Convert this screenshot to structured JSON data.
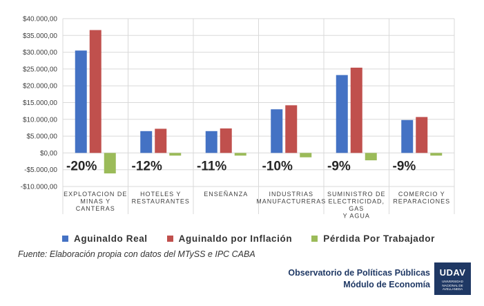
{
  "chart_data": {
    "type": "bar",
    "title": "",
    "xlabel": "",
    "ylabel": "",
    "ylim": [
      -10000,
      40000
    ],
    "yticks": [
      -10000,
      -5000,
      0,
      5000,
      10000,
      15000,
      20000,
      25000,
      30000,
      35000,
      40000
    ],
    "ytick_labels": [
      "-$10.000,00",
      "-$5.000,00",
      "$0,00",
      "$5.000,00",
      "$10.000,00",
      "$15.000,00",
      "$20.000,00",
      "$25.000,00",
      "$30.000,00",
      "$35.000,00",
      "$40.000,00"
    ],
    "categories": [
      [
        "EXPLOTACION DE",
        "MINAS Y",
        "CANTERAS"
      ],
      [
        "HOTELES Y",
        "RESTAURANTES"
      ],
      [
        "ENSEÑANZA"
      ],
      [
        "INDUSTRIAS",
        "MANUFACTURERAS"
      ],
      [
        "SUMINISTRO DE",
        "ELECTRICIDAD,",
        "GAS",
        "Y AGUA"
      ],
      [
        "COMERCIO Y",
        "REPARACIONES"
      ]
    ],
    "series": [
      {
        "name": "Aguinaldo Real",
        "color": "#4472c4",
        "values": [
          30500,
          6500,
          6500,
          13000,
          23200,
          9800
        ]
      },
      {
        "name": "Aguinaldo por Inflación",
        "color": "#c0504d",
        "values": [
          36600,
          7200,
          7300,
          14200,
          25400,
          10700
        ]
      },
      {
        "name": "Pérdida Por Trabajador",
        "color": "#9bbb59",
        "values": [
          -6100,
          -800,
          -800,
          -1300,
          -2200,
          -800
        ]
      }
    ],
    "annotations": [
      "-20%",
      "-12%",
      "-11%",
      "-10%",
      "-9%",
      "-9%"
    ],
    "grid": true,
    "legend": "bottom"
  },
  "footer": {
    "source": "Fuente: Elaboración propia con datos del MTySS e IPC CABA",
    "org_line1": "Observatorio de Políticas Públicas",
    "org_line2": "Módulo de Economía",
    "logo_main": "UDAV",
    "logo_sub": "UNIVERSIDAD NACIONAL DE AVELLANEDA"
  }
}
